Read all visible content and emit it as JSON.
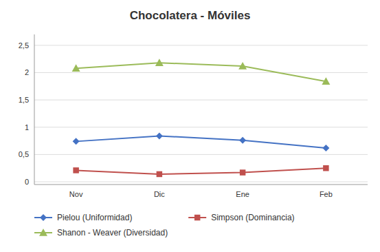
{
  "chart_data": {
    "type": "line",
    "title": "Chocolatera - Móviles",
    "categories": [
      "Nov",
      "Dic",
      "Ene",
      "Feb"
    ],
    "series": [
      {
        "name": "Pielou (Uniformidad)",
        "color": "#4472C4",
        "marker": "diamond",
        "values": [
          0.74,
          0.84,
          0.76,
          0.62
        ]
      },
      {
        "name": "Simpson (Dominancia)",
        "color": "#C0504D",
        "marker": "square",
        "values": [
          0.21,
          0.14,
          0.17,
          0.25
        ]
      },
      {
        "name": "Shanon - Weaver (Diversidad)",
        "color": "#9BBB59",
        "marker": "triangle",
        "values": [
          2.08,
          2.18,
          2.12,
          1.84
        ]
      }
    ],
    "ylim": [
      -0.05,
      2.7
    ],
    "yticks": [
      0,
      {
        "value": 0.5,
        "label": "0,5"
      },
      1,
      {
        "value": 1.5,
        "label": "1,5"
      },
      2,
      {
        "value": 2.5,
        "label": "2,5"
      }
    ],
    "grid": true,
    "legend": "bottom"
  }
}
